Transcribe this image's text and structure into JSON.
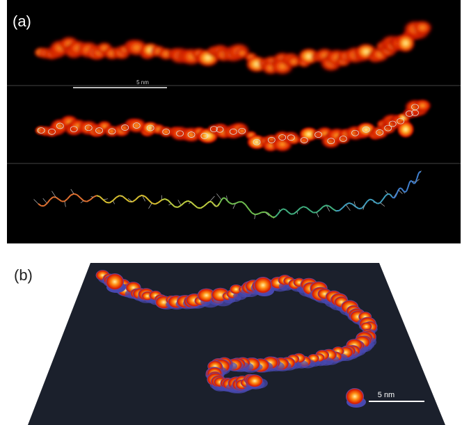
{
  "panel_a": {
    "label": "(a)",
    "scale_bar": "5 nm"
  },
  "panel_b": {
    "label": "(b)",
    "scale_bar": "5 nm"
  }
}
